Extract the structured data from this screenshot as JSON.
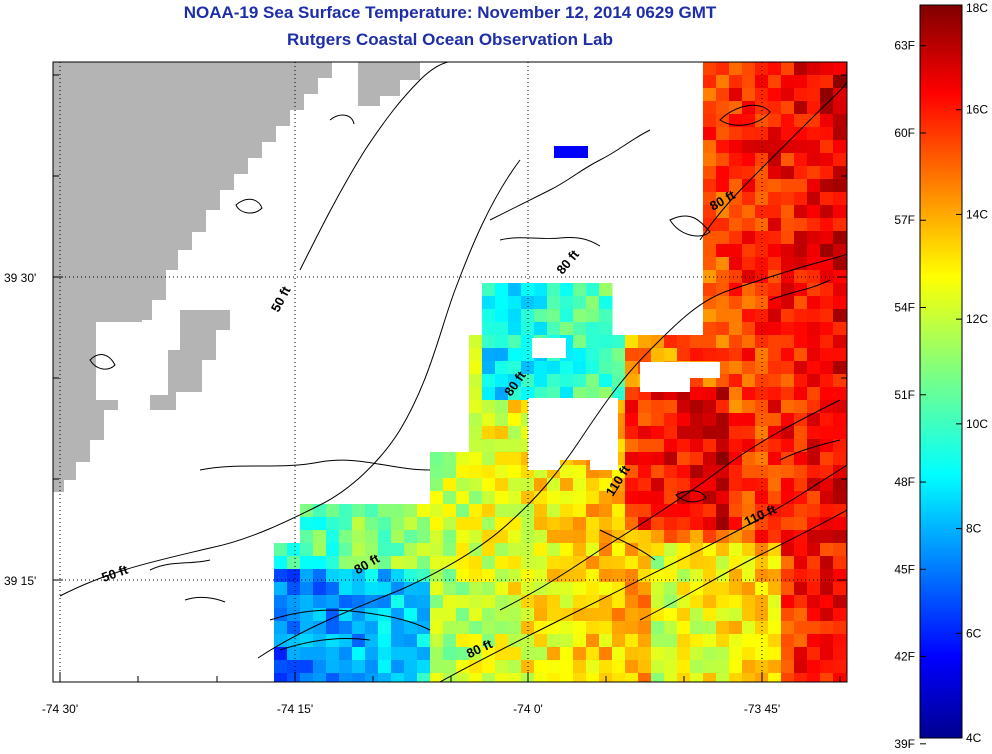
{
  "header": {
    "title": "NOAA-19 Sea Surface Temperature:  November 12, 2014 0629 GMT",
    "subtitle": "Rutgers Coastal Ocean Observation Lab"
  },
  "axes": {
    "x_ticks": [
      "-74 30'",
      "-74 15'",
      "-74 0'",
      "-73 45'"
    ],
    "y_ticks": [
      "39 30'",
      "39 15'"
    ]
  },
  "colorbar": {
    "celsius_ticks": [
      "18C",
      "16C",
      "14C",
      "12C",
      "10C",
      "8C",
      "6C",
      "4C"
    ],
    "fahrenheit_ticks": [
      "63F",
      "60F",
      "57F",
      "54F",
      "51F",
      "48F",
      "45F",
      "42F",
      "39F"
    ],
    "range_c": [
      4,
      18
    ],
    "colormap": "jet"
  },
  "depth_contours": [
    {
      "label": "50 ft",
      "x": -74.26,
      "y": 39.48
    },
    {
      "label": "50 ft",
      "x": -74.44,
      "y": 39.252
    },
    {
      "label": "80 ft",
      "x": -73.954,
      "y": 39.51
    },
    {
      "label": "80 ft",
      "x": -73.79,
      "y": 39.56
    },
    {
      "label": "80 ft",
      "x": -74.01,
      "y": 39.41
    },
    {
      "label": "80 ft",
      "x": -74.17,
      "y": 39.26
    },
    {
      "label": "80 ft",
      "x": -74.05,
      "y": 39.19
    },
    {
      "label": "110 ft",
      "x": -73.9,
      "y": 39.33
    },
    {
      "label": "110 ft",
      "x": -73.75,
      "y": 39.3
    }
  ],
  "colors": {
    "land": "#b4b4b4",
    "title": "#1e2ea8"
  }
}
